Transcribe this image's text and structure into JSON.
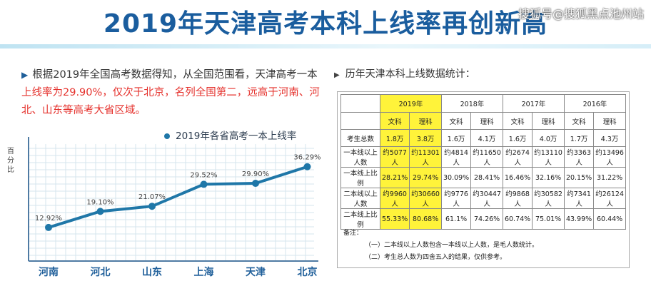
{
  "title": "2019年天津高考本科上线率再创新高",
  "watermark": "搜狐号@搜狐黑点池州站",
  "intro": {
    "part1": "根据2019年全国高考数据得知，从全国范围看，天津高考一本",
    "part2": "上线率为29.90%，仅次于北京，名列全国第二，远高于河南、河北、山东等高考大省区域。"
  },
  "legend_label": "2019年各省高考一本上线率",
  "ylabel": "百分比",
  "chart_data": {
    "type": "line",
    "title": "2019年各省高考一本上线率",
    "ylabel": "百分比",
    "categories": [
      "河南",
      "河北",
      "山东",
      "上海",
      "天津",
      "北京"
    ],
    "values": [
      12.92,
      19.1,
      21.07,
      29.52,
      29.9,
      36.29
    ],
    "labels": [
      "12.92%",
      "19.10%",
      "21.07%",
      "29.52%",
      "29.90%",
      "36.29%"
    ],
    "ylim": [
      0,
      45
    ],
    "grid": true,
    "color": "#1f77a8"
  },
  "table": {
    "title": "历年天津本科上线数据统计：",
    "years": [
      "2019年",
      "2018年",
      "2017年",
      "2016年"
    ],
    "subheaders": [
      "文科",
      "理科"
    ],
    "rows": [
      {
        "label": "考生总数",
        "cells": [
          "1.8万",
          "3.8万",
          "1.6万",
          "4.1万",
          "1.6万",
          "4.0万",
          "1.7万",
          "4.3万"
        ]
      },
      {
        "label": "一本线以上人数",
        "cells": [
          "约5077人",
          "约11301人",
          "约4814人",
          "约11650人",
          "约2674人",
          "约13110人",
          "约3363人",
          "约13496人"
        ]
      },
      {
        "label": "一本线上比例",
        "cells": [
          "28.21%",
          "29.74%",
          "30.09%",
          "28.41%",
          "16.46%",
          "32.16%",
          "20.15%",
          "31.22%"
        ]
      },
      {
        "label": "二本线以上人数",
        "cells": [
          "约9960人",
          "约30660人",
          "约9776人",
          "约30447人",
          "约9868人",
          "约30582人",
          "约7341人",
          "约26124人"
        ]
      },
      {
        "label": "二本线上比例",
        "cells": [
          "55.33%",
          "80.68%",
          "61.1%",
          "74.26%",
          "60.74%",
          "75.01%",
          "43.99%",
          "60.44%"
        ]
      }
    ],
    "notes_title": "备注：",
    "notes": [
      "（一）二本线以上人数包含一本线以上人数，是毛人数统计。",
      "（二）考生总人数为四舍五入的结果，仅供参考。"
    ]
  }
}
